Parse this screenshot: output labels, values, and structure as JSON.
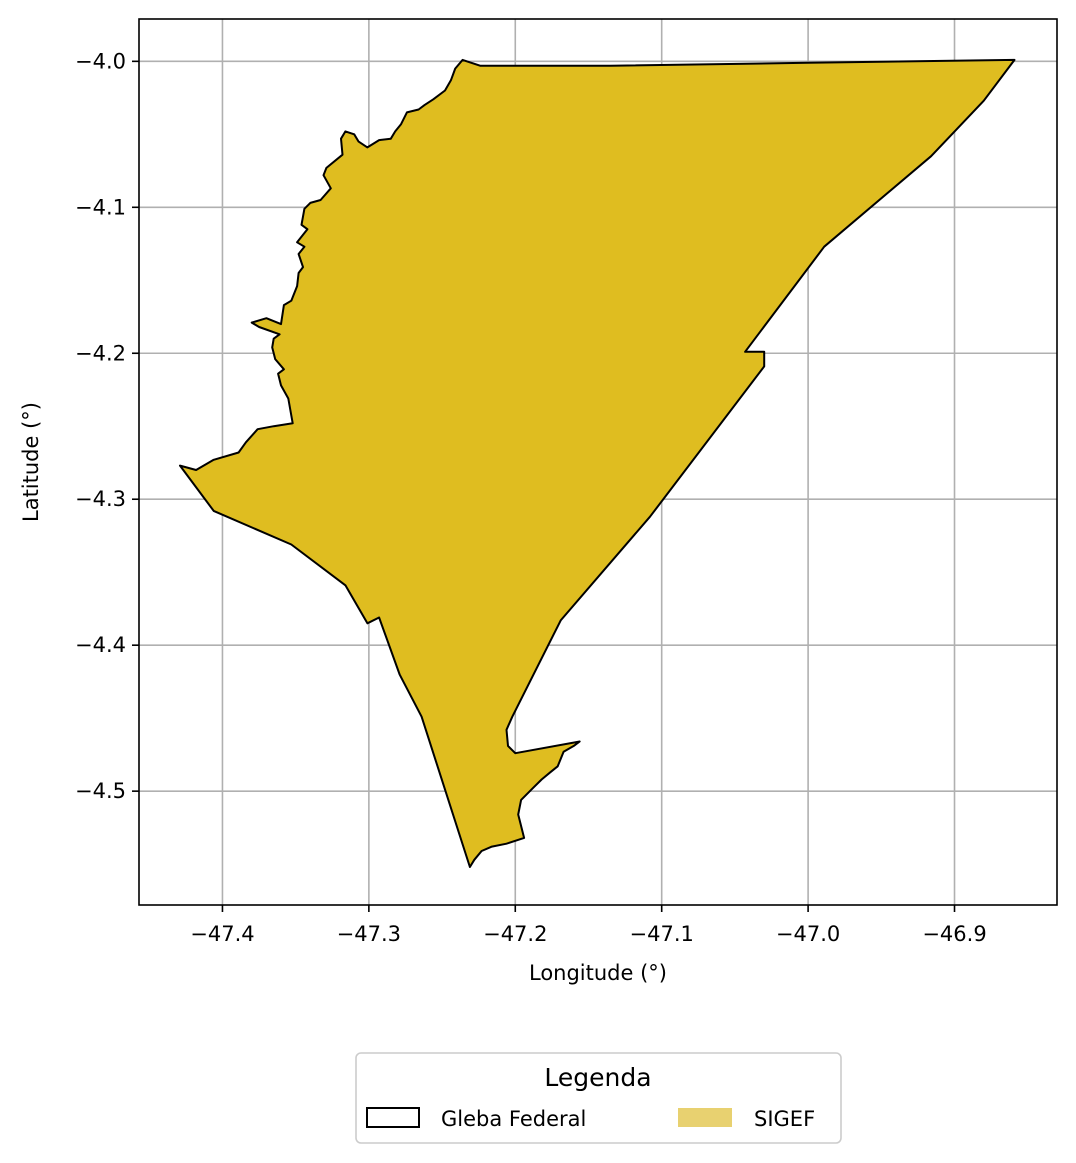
{
  "chart_data": {
    "type": "map",
    "xlabel": "Longitude (°)",
    "ylabel": "Latitude (°)",
    "xlim": [
      -47.457,
      -46.83
    ],
    "ylim": [
      -4.578,
      -3.971
    ],
    "grid": true,
    "x_ticks": [
      {
        "value": -47.4,
        "label": "−47.4"
      },
      {
        "value": -47.3,
        "label": "−47.3"
      },
      {
        "value": -47.2,
        "label": "−47.2"
      },
      {
        "value": -47.1,
        "label": "−47.1"
      },
      {
        "value": -47.0,
        "label": "−47.0"
      },
      {
        "value": -46.9,
        "label": "−46.9"
      }
    ],
    "y_ticks": [
      {
        "value": -4.0,
        "label": "−4.0"
      },
      {
        "value": -4.1,
        "label": "−4.1"
      },
      {
        "value": -4.2,
        "label": "−4.2"
      },
      {
        "value": -4.3,
        "label": "−4.3"
      },
      {
        "value": -4.4,
        "label": "−4.4"
      },
      {
        "value": -4.5,
        "label": "−4.5"
      }
    ],
    "fill_color": "#dfbd20",
    "edge_color": "#000000",
    "polygon": [
      [
        -46.859,
        -3.999
      ],
      [
        -46.88,
        -4.027
      ],
      [
        -46.916,
        -4.065
      ],
      [
        -46.989,
        -4.127
      ],
      [
        -47.043,
        -4.199
      ],
      [
        -47.03,
        -4.199
      ],
      [
        -47.03,
        -4.209
      ],
      [
        -47.108,
        -4.312
      ],
      [
        -47.169,
        -4.383
      ],
      [
        -47.202,
        -4.449
      ],
      [
        -47.206,
        -4.458
      ],
      [
        -47.205,
        -4.469
      ],
      [
        -47.2,
        -4.474
      ],
      [
        -47.156,
        -4.466
      ],
      [
        -47.16,
        -4.469
      ],
      [
        -47.167,
        -4.473
      ],
      [
        -47.171,
        -4.483
      ],
      [
        -47.176,
        -4.487
      ],
      [
        -47.182,
        -4.492
      ],
      [
        -47.188,
        -4.498
      ],
      [
        -47.196,
        -4.506
      ],
      [
        -47.198,
        -4.516
      ],
      [
        -47.194,
        -4.532
      ],
      [
        -47.206,
        -4.536
      ],
      [
        -47.216,
        -4.538
      ],
      [
        -47.223,
        -4.541
      ],
      [
        -47.228,
        -4.547
      ],
      [
        -47.231,
        -4.552
      ],
      [
        -47.264,
        -4.449
      ],
      [
        -47.279,
        -4.42
      ],
      [
        -47.293,
        -4.381
      ],
      [
        -47.301,
        -4.385
      ],
      [
        -47.316,
        -4.359
      ],
      [
        -47.353,
        -4.331
      ],
      [
        -47.406,
        -4.308
      ],
      [
        -47.429,
        -4.277
      ],
      [
        -47.418,
        -4.28
      ],
      [
        -47.406,
        -4.273
      ],
      [
        -47.389,
        -4.268
      ],
      [
        -47.384,
        -4.261
      ],
      [
        -47.376,
        -4.252
      ],
      [
        -47.365,
        -4.25
      ],
      [
        -47.352,
        -4.248
      ],
      [
        -47.355,
        -4.231
      ],
      [
        -47.36,
        -4.222
      ],
      [
        -47.362,
        -4.214
      ],
      [
        -47.358,
        -4.211
      ],
      [
        -47.364,
        -4.204
      ],
      [
        -47.366,
        -4.196
      ],
      [
        -47.365,
        -4.19
      ],
      [
        -47.361,
        -4.187
      ],
      [
        -47.375,
        -4.182
      ],
      [
        -47.38,
        -4.179
      ],
      [
        -47.37,
        -4.176
      ],
      [
        -47.36,
        -4.18
      ],
      [
        -47.358,
        -4.167
      ],
      [
        -47.353,
        -4.164
      ],
      [
        -47.349,
        -4.154
      ],
      [
        -47.348,
        -4.145
      ],
      [
        -47.345,
        -4.141
      ],
      [
        -47.348,
        -4.132
      ],
      [
        -47.344,
        -4.127
      ],
      [
        -47.349,
        -4.124
      ],
      [
        -47.342,
        -4.115
      ],
      [
        -47.346,
        -4.112
      ],
      [
        -47.344,
        -4.101
      ],
      [
        -47.34,
        -4.097
      ],
      [
        -47.333,
        -4.095
      ],
      [
        -47.326,
        -4.087
      ],
      [
        -47.331,
        -4.078
      ],
      [
        -47.329,
        -4.073
      ],
      [
        -47.318,
        -4.064
      ],
      [
        -47.319,
        -4.053
      ],
      [
        -47.316,
        -4.048
      ],
      [
        -47.31,
        -4.05
      ],
      [
        -47.307,
        -4.055
      ],
      [
        -47.301,
        -4.059
      ],
      [
        -47.293,
        -4.054
      ],
      [
        -47.285,
        -4.053
      ],
      [
        -47.282,
        -4.048
      ],
      [
        -47.278,
        -4.043
      ],
      [
        -47.274,
        -4.035
      ],
      [
        -47.266,
        -4.033
      ],
      [
        -47.262,
        -4.03
      ],
      [
        -47.256,
        -4.026
      ],
      [
        -47.248,
        -4.02
      ],
      [
        -47.244,
        -4.013
      ],
      [
        -47.241,
        -4.005
      ],
      [
        -47.236,
        -3.999
      ],
      [
        -47.224,
        -4.003
      ],
      [
        -47.135,
        -4.003
      ],
      [
        -47.0,
        -4.001
      ],
      [
        -46.859,
        -3.999
      ]
    ]
  },
  "legend": {
    "title": "Legenda",
    "position": "bottom-center",
    "items": [
      {
        "label": "Gleba Federal",
        "style": "outline",
        "color": "#000000"
      },
      {
        "label": "SIGEF",
        "style": "fill",
        "color": "#e8d170"
      }
    ]
  }
}
